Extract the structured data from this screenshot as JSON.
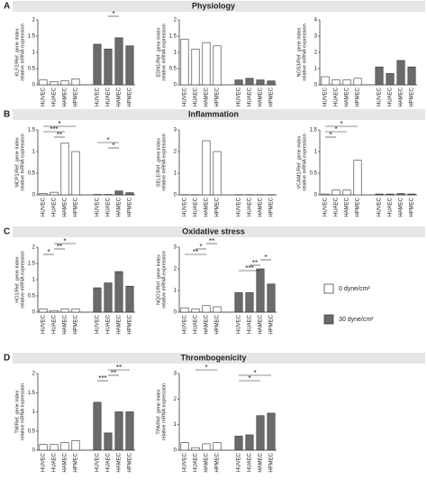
{
  "sections": [
    {
      "letter": "A",
      "title": "Physiology"
    },
    {
      "letter": "B",
      "title": "Inflammation"
    },
    {
      "letter": "C",
      "title": "Oxidative stress"
    },
    {
      "letter": "D",
      "title": "Thrombogenicity"
    }
  ],
  "categories": [
    "HUVEC",
    "HUAEC",
    "HAMEC",
    "HPMEC"
  ],
  "legend": [
    {
      "name": "0 dyne/cm²",
      "color": "#ffffff"
    },
    {
      "name": "30 dyne/cm²",
      "color": "#6b6b6b"
    }
  ],
  "chart_data": [
    {
      "type": "bar",
      "ylabel": [
        "KLF2/Ref. gene index",
        "relative mRNA expression"
      ],
      "ylim": [
        0,
        2
      ],
      "yticks": [
        0,
        0.5,
        1,
        1.5,
        2
      ],
      "series": [
        {
          "values": [
            0.15,
            0.1,
            0.12,
            0.18
          ]
        },
        {
          "values": [
            1.25,
            1.1,
            1.45,
            1.2
          ]
        }
      ],
      "sig": [
        {
          "series": 1,
          "from": 1,
          "to": 2,
          "label": "*"
        }
      ]
    },
    {
      "type": "bar",
      "ylabel": [
        "EDN1/Ref. gene index",
        "relative mRNA expression"
      ],
      "ylim": [
        0,
        2
      ],
      "yticks": [
        0,
        0.5,
        1,
        1.5,
        2
      ],
      "series": [
        {
          "values": [
            1.4,
            1.1,
            1.3,
            1.2
          ]
        },
        {
          "values": [
            0.15,
            0.2,
            0.15,
            0.12
          ]
        }
      ],
      "sig": []
    },
    {
      "type": "bar",
      "ylabel": [
        "NOS3/Ref. gene index",
        "relative mRNA expression"
      ],
      "ylim": [
        0,
        4
      ],
      "yticks": [
        0,
        1,
        2,
        3,
        4
      ],
      "series": [
        {
          "values": [
            0.5,
            0.3,
            0.3,
            0.4
          ]
        },
        {
          "values": [
            1.1,
            0.7,
            1.5,
            1.1
          ]
        }
      ],
      "sig": []
    },
    {
      "type": "bar",
      "ylabel": [
        "MCP1/Ref. gene index",
        "relative mRNA expression"
      ],
      "ylim": [
        0,
        1.5
      ],
      "yticks": [
        0,
        0.5,
        1,
        1.5
      ],
      "series": [
        {
          "values": [
            0.03,
            0.06,
            1.2,
            1.0
          ]
        },
        {
          "values": [
            0.01,
            0.01,
            0.09,
            0.05
          ]
        }
      ],
      "sig": [
        {
          "series": 0,
          "from": 0,
          "to": 3,
          "label": "*"
        },
        {
          "series": 0,
          "from": 0,
          "to": 2,
          "label": "***"
        },
        {
          "series": 0,
          "from": 1,
          "to": 2,
          "label": "**"
        },
        {
          "series": 1,
          "from": 0,
          "to": 2,
          "label": "*"
        },
        {
          "series": 1,
          "from": 1,
          "to": 2,
          "label": "*"
        }
      ]
    },
    {
      "type": "bar",
      "ylabel": [
        "SELE/Ref. gene index",
        "relative mRNA expression"
      ],
      "ylim": [
        0,
        3
      ],
      "yticks": [
        0,
        1,
        2,
        3
      ],
      "series": [
        {
          "values": [
            0.01,
            0.01,
            2.5,
            2.0
          ]
        },
        {
          "values": [
            0.01,
            0.01,
            0.01,
            0.01
          ]
        }
      ],
      "sig": []
    },
    {
      "type": "bar",
      "ylabel": [
        "VCAM1/Ref. gene index",
        "relative mRNA expression"
      ],
      "ylim": [
        0,
        1.5
      ],
      "yticks": [
        0,
        0.5,
        1,
        1.5
      ],
      "series": [
        {
          "values": [
            0.02,
            0.11,
            0.11,
            0.8
          ]
        },
        {
          "values": [
            0.02,
            0.02,
            0.03,
            0.02
          ]
        }
      ],
      "sig": [
        {
          "series": 0,
          "from": 0,
          "to": 3,
          "label": "*"
        },
        {
          "series": 0,
          "from": 0,
          "to": 2,
          "label": "*"
        },
        {
          "series": 0,
          "from": 0,
          "to": 1,
          "label": "*"
        }
      ]
    },
    {
      "type": "bar",
      "ylabel": [
        "HO1/Ref. gene index",
        "relative mRNA expression"
      ],
      "ylim": [
        0,
        2
      ],
      "yticks": [
        0,
        0.5,
        1,
        1.5,
        2
      ],
      "series": [
        {
          "values": [
            0.1,
            0.05,
            0.1,
            0.1
          ]
        },
        {
          "values": [
            0.75,
            0.9,
            1.25,
            0.8
          ]
        }
      ],
      "sig": [
        {
          "series": 0,
          "from": 1,
          "to": 3,
          "label": "*"
        },
        {
          "series": 0,
          "from": 1,
          "to": 2,
          "label": "**"
        },
        {
          "series": 0,
          "from": 0,
          "to": 1,
          "label": "*"
        }
      ]
    },
    {
      "type": "bar",
      "ylabel": [
        "NQO1/Ref. gene index",
        "relative mRNA expression"
      ],
      "ylim": [
        0,
        3
      ],
      "yticks": [
        0,
        1,
        2,
        3
      ],
      "series": [
        {
          "values": [
            0.2,
            0.15,
            0.3,
            0.25
          ]
        },
        {
          "values": [
            0.9,
            0.9,
            2.0,
            1.3
          ]
        }
      ],
      "sig": [
        {
          "series": 0,
          "from": 2,
          "to": 3,
          "label": "**"
        },
        {
          "series": 0,
          "from": 1,
          "to": 2,
          "label": "*"
        },
        {
          "series": 0,
          "from": 0,
          "to": 2,
          "label": "**"
        },
        {
          "series": 1,
          "from": 2,
          "to": 3,
          "label": "*"
        },
        {
          "series": 1,
          "from": 1,
          "to": 2,
          "label": "**"
        },
        {
          "series": 1,
          "from": 0,
          "to": 2,
          "label": "***"
        }
      ]
    },
    {
      "type": "bar",
      "ylabel": [
        "TM/Ref. gene index",
        "relative mRNA expression"
      ],
      "ylim": [
        0,
        2
      ],
      "yticks": [
        0,
        0.5,
        1,
        1.5,
        2
      ],
      "series": [
        {
          "values": [
            0.15,
            0.15,
            0.2,
            0.25
          ]
        },
        {
          "values": [
            1.25,
            0.45,
            1.0,
            1.0
          ]
        }
      ],
      "sig": [
        {
          "series": 1,
          "from": 1,
          "to": 3,
          "label": "**"
        },
        {
          "series": 1,
          "from": 1,
          "to": 2,
          "label": "**"
        },
        {
          "series": 1,
          "from": 0,
          "to": 1,
          "label": "***"
        }
      ]
    },
    {
      "type": "bar",
      "ylabel": [
        "TPA/Ref. gene index",
        "relative mRNA expression"
      ],
      "ylim": [
        0,
        3
      ],
      "yticks": [
        0,
        1,
        2,
        3
      ],
      "series": [
        {
          "values": [
            0.3,
            0.1,
            0.25,
            0.3
          ]
        },
        {
          "values": [
            0.55,
            0.6,
            1.35,
            1.45
          ]
        }
      ],
      "sig": [
        {
          "series": 0,
          "from": 1,
          "to": 3,
          "label": "*"
        },
        {
          "series": 1,
          "from": 0,
          "to": 3,
          "label": "*"
        },
        {
          "series": 1,
          "from": 0,
          "to": 2,
          "label": "*"
        }
      ]
    }
  ]
}
